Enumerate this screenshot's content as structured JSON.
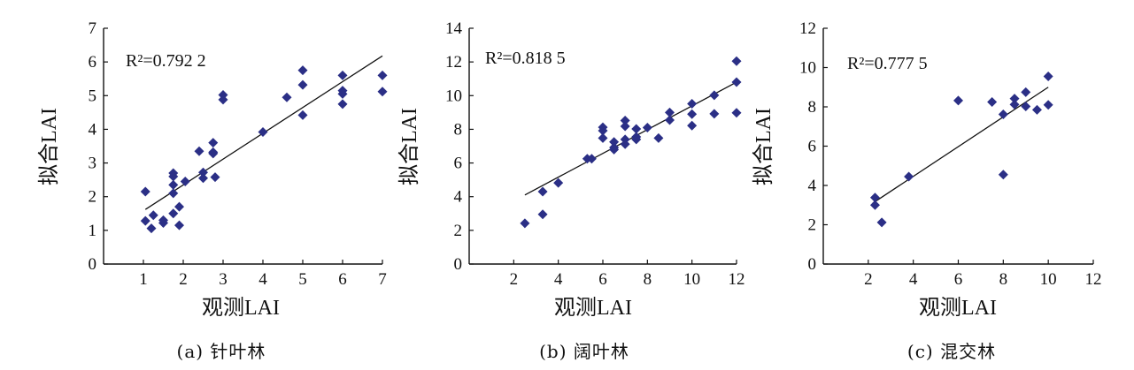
{
  "chart_data": [
    {
      "type": "scatter",
      "caption": "(a) 针叶林",
      "xlabel": "观测LAI",
      "ylabel": "拟合LAI",
      "annotation": "R²=0.792 2",
      "xlim": [
        0,
        7
      ],
      "ylim": [
        0,
        7
      ],
      "xticks": [
        1,
        2,
        3,
        4,
        5,
        6,
        7
      ],
      "yticks": [
        0,
        1,
        2,
        3,
        4,
        5,
        6,
        7
      ],
      "marker_color": "#2b2f86",
      "fit_line": [
        [
          1.05,
          1.62
        ],
        [
          7.0,
          6.18
        ]
      ],
      "points": [
        [
          1.05,
          2.15
        ],
        [
          1.05,
          1.28
        ],
        [
          1.2,
          1.06
        ],
        [
          1.25,
          1.45
        ],
        [
          1.5,
          1.3
        ],
        [
          1.5,
          1.22
        ],
        [
          1.75,
          2.7
        ],
        [
          1.75,
          2.6
        ],
        [
          1.75,
          2.35
        ],
        [
          1.75,
          2.1
        ],
        [
          1.75,
          1.5
        ],
        [
          1.9,
          1.15
        ],
        [
          1.9,
          1.7
        ],
        [
          2.05,
          2.45
        ],
        [
          2.4,
          3.35
        ],
        [
          2.5,
          2.72
        ],
        [
          2.5,
          2.55
        ],
        [
          2.75,
          3.6
        ],
        [
          2.75,
          3.32
        ],
        [
          2.75,
          3.28
        ],
        [
          2.8,
          2.58
        ],
        [
          3.0,
          5.02
        ],
        [
          3.0,
          4.88
        ],
        [
          4.0,
          3.92
        ],
        [
          4.6,
          4.95
        ],
        [
          5.0,
          5.75
        ],
        [
          5.0,
          5.32
        ],
        [
          5.0,
          4.42
        ],
        [
          6.0,
          5.6
        ],
        [
          6.0,
          5.15
        ],
        [
          6.0,
          5.05
        ],
        [
          6.0,
          4.75
        ],
        [
          7.0,
          5.6
        ],
        [
          7.0,
          5.12
        ]
      ]
    },
    {
      "type": "scatter",
      "caption": "(b) 阔叶林",
      "xlabel": "观测LAI",
      "ylabel": "拟合LAI",
      "annotation": "R²=0.818 5",
      "xlim": [
        0,
        12
      ],
      "ylim": [
        0,
        14
      ],
      "xticks": [
        2,
        4,
        6,
        8,
        10,
        12
      ],
      "yticks": [
        0,
        2,
        4,
        6,
        8,
        10,
        12,
        14
      ],
      "marker_color": "#2b2f86",
      "fit_line": [
        [
          2.5,
          4.1
        ],
        [
          12.0,
          10.8
        ]
      ],
      "points": [
        [
          2.5,
          2.42
        ],
        [
          3.3,
          4.3
        ],
        [
          3.3,
          2.95
        ],
        [
          4.0,
          4.82
        ],
        [
          5.3,
          6.25
        ],
        [
          5.5,
          6.25
        ],
        [
          6.0,
          8.12
        ],
        [
          6.0,
          7.92
        ],
        [
          6.0,
          7.48
        ],
        [
          6.5,
          7.25
        ],
        [
          6.5,
          6.92
        ],
        [
          6.5,
          6.8
        ],
        [
          7.0,
          8.52
        ],
        [
          7.0,
          8.18
        ],
        [
          7.0,
          7.4
        ],
        [
          7.0,
          7.12
        ],
        [
          7.5,
          8.02
        ],
        [
          7.5,
          7.55
        ],
        [
          7.5,
          7.4
        ],
        [
          8.0,
          8.1
        ],
        [
          8.5,
          7.48
        ],
        [
          9.0,
          9.0
        ],
        [
          9.0,
          8.55
        ],
        [
          10.0,
          9.52
        ],
        [
          10.0,
          8.9
        ],
        [
          10.0,
          8.22
        ],
        [
          11.0,
          10.02
        ],
        [
          11.0,
          8.92
        ],
        [
          12.0,
          12.05
        ],
        [
          12.0,
          10.8
        ],
        [
          12.0,
          8.98
        ]
      ]
    },
    {
      "type": "scatter",
      "caption": "(c) 混交林",
      "xlabel": "观测LAI",
      "ylabel": "拟合LAI",
      "annotation": "R²=0.777 5",
      "xlim": [
        0,
        12
      ],
      "ylim": [
        0,
        12
      ],
      "xticks": [
        2,
        4,
        6,
        8,
        10,
        12
      ],
      "yticks": [
        0,
        2,
        4,
        6,
        8,
        10,
        12
      ],
      "marker_color": "#2b2f86",
      "fit_line": [
        [
          2.2,
          3.1
        ],
        [
          10.0,
          9.0
        ]
      ],
      "points": [
        [
          2.3,
          3.38
        ],
        [
          2.3,
          3.0
        ],
        [
          2.6,
          2.12
        ],
        [
          3.8,
          4.45
        ],
        [
          6.0,
          8.32
        ],
        [
          7.5,
          8.25
        ],
        [
          8.0,
          7.62
        ],
        [
          8.0,
          4.55
        ],
        [
          8.5,
          8.42
        ],
        [
          8.5,
          8.12
        ],
        [
          9.0,
          8.75
        ],
        [
          9.0,
          8.02
        ],
        [
          9.5,
          7.85
        ],
        [
          10.0,
          9.55
        ],
        [
          10.0,
          8.1
        ]
      ]
    }
  ]
}
